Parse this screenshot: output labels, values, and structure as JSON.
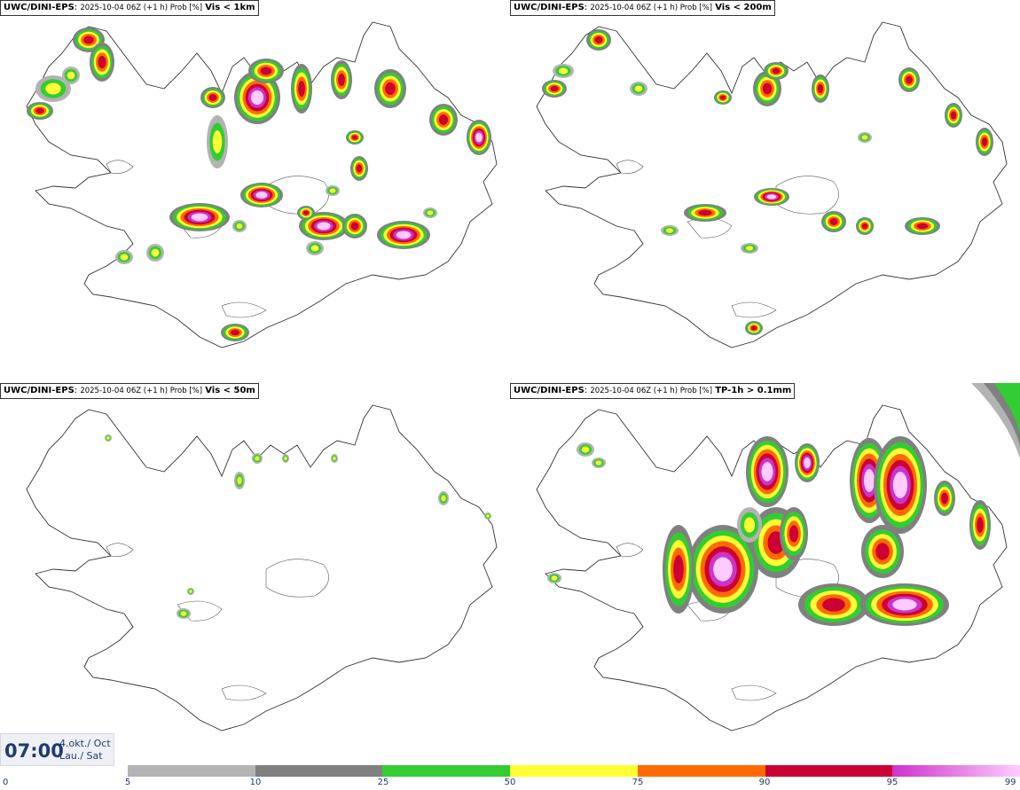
{
  "panels": [
    {
      "model": "UWC/DINI-EPS",
      "meta": "2025-10-04 06Z (+1 h) Prob [%]",
      "field": "Vis < 1km"
    },
    {
      "model": "UWC/DINI-EPS",
      "meta": "2025-10-04 06Z (+1 h) Prob [%]",
      "field": "Vis < 200m"
    },
    {
      "model": "UWC/DINI-EPS",
      "meta": "2025-10-04 06Z (+1 h) Prob [%]",
      "field": "Vis < 50m"
    },
    {
      "model": "UWC/DINI-EPS",
      "meta": "2025-10-04 06Z (+1 h) Prob [%]",
      "field": "TP-1h > 0.1mm"
    }
  ],
  "valid_time": {
    "time": "07:00",
    "date_line1": "4.okt./ Oct",
    "date_line2": "Lau./ Sat"
  },
  "colorbar": {
    "ticks": [
      "0",
      "5",
      "10",
      "25",
      "50",
      "75",
      "90",
      "95",
      "99"
    ],
    "colors": [
      "#b3b3b3",
      "#808080",
      "#33cc33",
      "#ffff33",
      "#ff6a00",
      "#cc0033",
      "#cc33cc",
      "#ffccff"
    ]
  }
}
